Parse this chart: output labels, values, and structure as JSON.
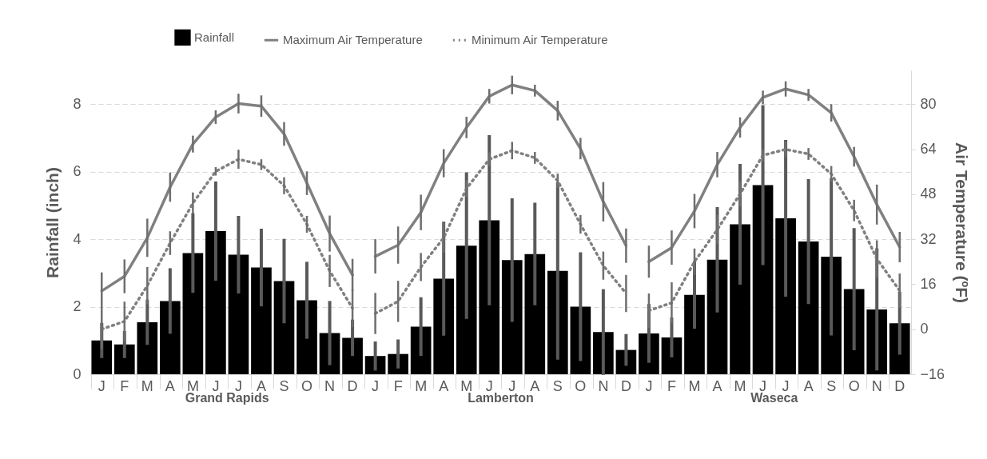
{
  "chart_data": {
    "type": "bar",
    "categories": [
      "J",
      "F",
      "M",
      "A",
      "M",
      "J",
      "J",
      "A",
      "S",
      "O",
      "N",
      "D",
      "J",
      "F",
      "M",
      "A",
      "M",
      "J",
      "J",
      "A",
      "S",
      "O",
      "N",
      "D",
      "J",
      "F",
      "M",
      "A",
      "M",
      "J",
      "J",
      "A",
      "S",
      "O",
      "N",
      "D"
    ],
    "series": [
      {
        "name": "Rainfall",
        "color": "#000000",
        "values": [
          1.0,
          0.88,
          1.54,
          2.17,
          3.59,
          4.24,
          3.54,
          3.16,
          2.76,
          2.19,
          1.22,
          1.08,
          0.54,
          0.6,
          1.41,
          2.83,
          3.81,
          4.56,
          3.38,
          3.56,
          3.06,
          2.0,
          1.25,
          0.72,
          1.21,
          1.09,
          2.35,
          3.39,
          4.44,
          5.6,
          4.62,
          3.93,
          3.48,
          2.52,
          1.92,
          1.51
        ],
        "errors": [
          0.52,
          0.4,
          0.67,
          0.97,
          1.18,
          1.47,
          1.15,
          1.15,
          1.25,
          1.14,
          0.95,
          0.54,
          0.43,
          0.43,
          0.87,
          1.69,
          2.17,
          2.52,
          1.83,
          1.52,
          2.63,
          1.61,
          1.27,
          0.47,
          0.87,
          0.59,
          1.0,
          1.56,
          1.79,
          2.37,
          2.32,
          1.85,
          2.33,
          1.81,
          1.81,
          0.93
        ]
      },
      {
        "name": "Maximum Air Temperature",
        "type": "line",
        "axis": "y2",
        "color": "#808080",
        "line_style": "solid",
        "values": [
          13.6,
          18.8,
          32.5,
          50.5,
          65.8,
          75.4,
          80.2,
          79.3,
          69.4,
          51.9,
          34,
          19.3,
          25.9,
          29.9,
          41.5,
          59,
          71.7,
          82.8,
          86.8,
          84.8,
          77.7,
          64.2,
          45.3,
          29.7,
          24,
          29,
          42,
          58.5,
          71.7,
          82.4,
          85.4,
          83.3,
          76.9,
          61.3,
          44.3,
          29.2
        ],
        "errors": [
          6.6,
          6,
          6.8,
          5.2,
          3,
          2.4,
          3.5,
          3.8,
          4.2,
          4.2,
          6.4,
          5.7,
          6.1,
          6.6,
          6.3,
          5,
          3.8,
          2.6,
          3.3,
          2.1,
          3.5,
          3.8,
          7,
          6.1,
          5.7,
          6.1,
          6.1,
          4.5,
          3.6,
          2.4,
          2.7,
          2.1,
          3.1,
          3.5,
          7.1,
          5.4
        ]
      },
      {
        "name": "Minimum Air Temperature",
        "type": "line",
        "axis": "y2",
        "color": "#808080",
        "line_style": "dotted",
        "values": [
          0,
          2.8,
          15.5,
          30.6,
          44.8,
          56.1,
          60.4,
          58.5,
          51,
          37.3,
          20.7,
          7.5,
          5.6,
          9.9,
          22.1,
          32.5,
          50,
          60.4,
          63.5,
          60.9,
          52.8,
          37.3,
          22.6,
          12.7,
          6.6,
          9.4,
          24,
          35.4,
          48.1,
          61.8,
          63.9,
          62.3,
          55.2,
          42.2,
          25,
          13.7
        ],
        "errors": [
          7,
          7,
          6.6,
          4.2,
          3.8,
          1.5,
          3.4,
          1.9,
          3,
          3,
          5.7,
          6.8,
          7.3,
          7.3,
          5,
          5.3,
          3,
          2.4,
          3.1,
          2.1,
          2.5,
          3.3,
          5,
          6.6,
          6.1,
          7.3,
          4.7,
          5.2,
          4.5,
          2.1,
          2.8,
          2.1,
          2.8,
          3.8,
          6.6,
          6.1
        ]
      }
    ],
    "ylabel": "Rainfall (inch)",
    "y2label": "Air Temperature (ºF)",
    "ylim": [
      0,
      9
    ],
    "yticks": [
      0,
      2,
      4,
      6,
      8
    ],
    "y2lim": [
      -16,
      92
    ],
    "y2ticks": [
      -16,
      0,
      16,
      32,
      48,
      64,
      80
    ],
    "annotations": [
      "Grand Rapids",
      "Lamberton",
      "Waseca"
    ],
    "grid": "y",
    "legend": "top"
  }
}
